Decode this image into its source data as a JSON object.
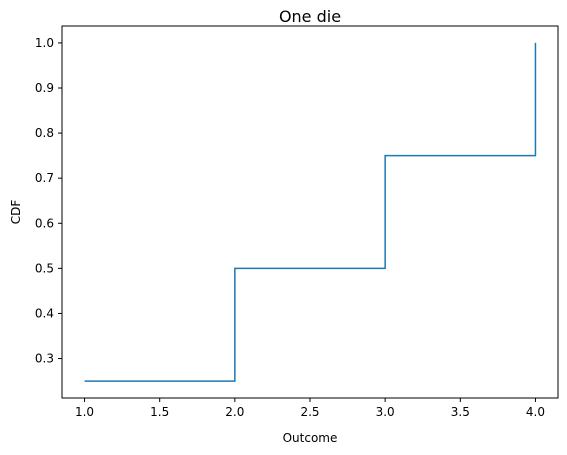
{
  "chart_data": {
    "type": "line",
    "step": "post",
    "title": "One die",
    "xlabel": "Outcome",
    "ylabel": "CDF",
    "xlim": [
      0.85,
      4.15
    ],
    "ylim": [
      0.2125,
      1.0375
    ],
    "xticks": [
      1.0,
      1.5,
      2.0,
      2.5,
      3.0,
      3.5,
      4.0
    ],
    "xtick_labels": [
      "1.0",
      "1.5",
      "2.0",
      "2.5",
      "3.0",
      "3.5",
      "4.0"
    ],
    "yticks": [
      0.3,
      0.4,
      0.5,
      0.6,
      0.7,
      0.8,
      0.9,
      1.0
    ],
    "ytick_labels": [
      "0.3",
      "0.4",
      "0.5",
      "0.6",
      "0.7",
      "0.8",
      "0.9",
      "1.0"
    ],
    "grid": false,
    "series": [
      {
        "color": "#1f77b4",
        "x": [
          1,
          2,
          3,
          4
        ],
        "y": [
          0.25,
          0.5,
          0.75,
          1.0
        ]
      }
    ]
  }
}
